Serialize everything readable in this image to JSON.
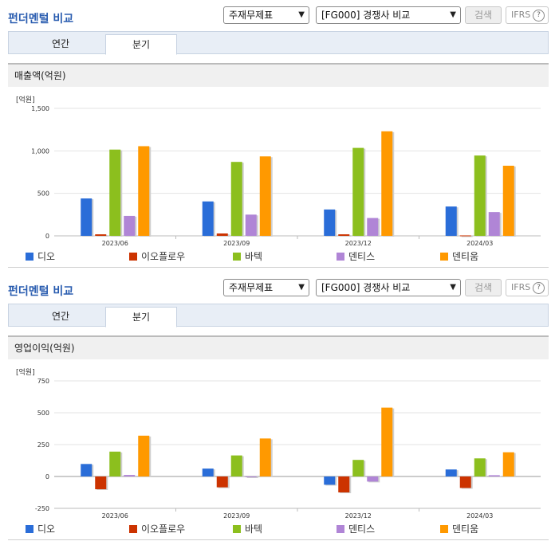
{
  "header": {
    "title": "펀더멘털 비교",
    "select1": "주재무제표",
    "select2": "[FG000] 경쟁사 비교",
    "search_label": "검색",
    "ifrs_label": "IFRS",
    "help_glyph": "?"
  },
  "tabs": [
    "연간",
    "분기"
  ],
  "colors": [
    "#2a6dd8",
    "#cc3300",
    "#8cbf1e",
    "#b085d6",
    "#ff9900"
  ],
  "series_names": [
    "디오",
    "이오플로우",
    "바텍",
    "덴티스",
    "덴티움"
  ],
  "panels": [
    {
      "section_label": "매출액(억원)",
      "unit_label": "[억원]",
      "chart_data": {
        "type": "bar",
        "categories": [
          "2023/06",
          "2023/09",
          "2023/12",
          "2024/03"
        ],
        "ylim": [
          0,
          1500
        ],
        "yticks": [
          "1,500",
          "1,000",
          "500",
          "0"
        ],
        "series": [
          {
            "name": "디오",
            "values": [
              440,
              405,
              310,
              345
            ]
          },
          {
            "name": "이오플로우",
            "values": [
              18,
              28,
              18,
              5
            ]
          },
          {
            "name": "바텍",
            "values": [
              1015,
              870,
              1035,
              945
            ]
          },
          {
            "name": "덴티스",
            "values": [
              235,
              250,
              210,
              280
            ]
          },
          {
            "name": "덴티움",
            "values": [
              1055,
              935,
              1230,
              825
            ]
          }
        ]
      }
    },
    {
      "section_label": "영업이익(억원)",
      "unit_label": "[억원]",
      "chart_data": {
        "type": "bar",
        "categories": [
          "2023/06",
          "2023/09",
          "2023/12",
          "2024/03"
        ],
        "ylim": [
          -250,
          750
        ],
        "yticks": [
          "750",
          "500",
          "250",
          "0",
          "-250"
        ],
        "series": [
          {
            "name": "디오",
            "values": [
              98,
              62,
              -65,
              55
            ]
          },
          {
            "name": "이오플로우",
            "values": [
              -100,
              -85,
              -125,
              -90
            ]
          },
          {
            "name": "바텍",
            "values": [
              195,
              165,
              130,
              142
            ]
          },
          {
            "name": "덴티스",
            "values": [
              12,
              0,
              -40,
              10
            ]
          },
          {
            "name": "덴티움",
            "values": [
              320,
              298,
              540,
              190
            ]
          }
        ]
      }
    }
  ]
}
